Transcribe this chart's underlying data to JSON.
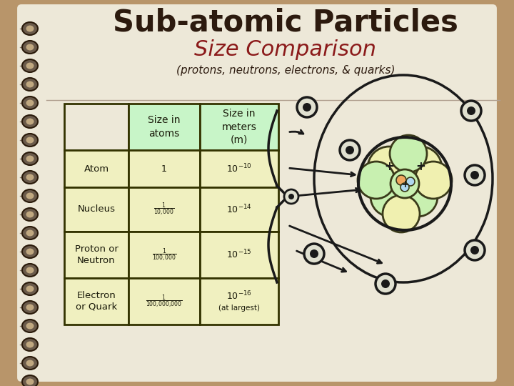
{
  "background_color": "#b8956a",
  "page_color": "#ede8d8",
  "title1": "Sub-atomic Particles",
  "title2": "Size Comparison",
  "subtitle": "(protons, neutrons, electrons, & quarks)",
  "title1_color": "#2c1a0e",
  "title2_color": "#8b1a1a",
  "subtitle_color": "#2c1a0e",
  "table_header_bg": "#c8f5c8",
  "table_row_bg": "#f0f0c0",
  "table_border_color": "#333300",
  "spiral_dark": "#5a4a3a",
  "spiral_light": "#c8b89a",
  "nucleus_yellow": "#f0f0b0",
  "nucleus_green": "#c8f0b0",
  "nucleus_blue": "#b0d8f0",
  "nucleus_orange": "#f0a860",
  "electron_fill": "#e0e0d0",
  "line_color": "#1a1a1a"
}
